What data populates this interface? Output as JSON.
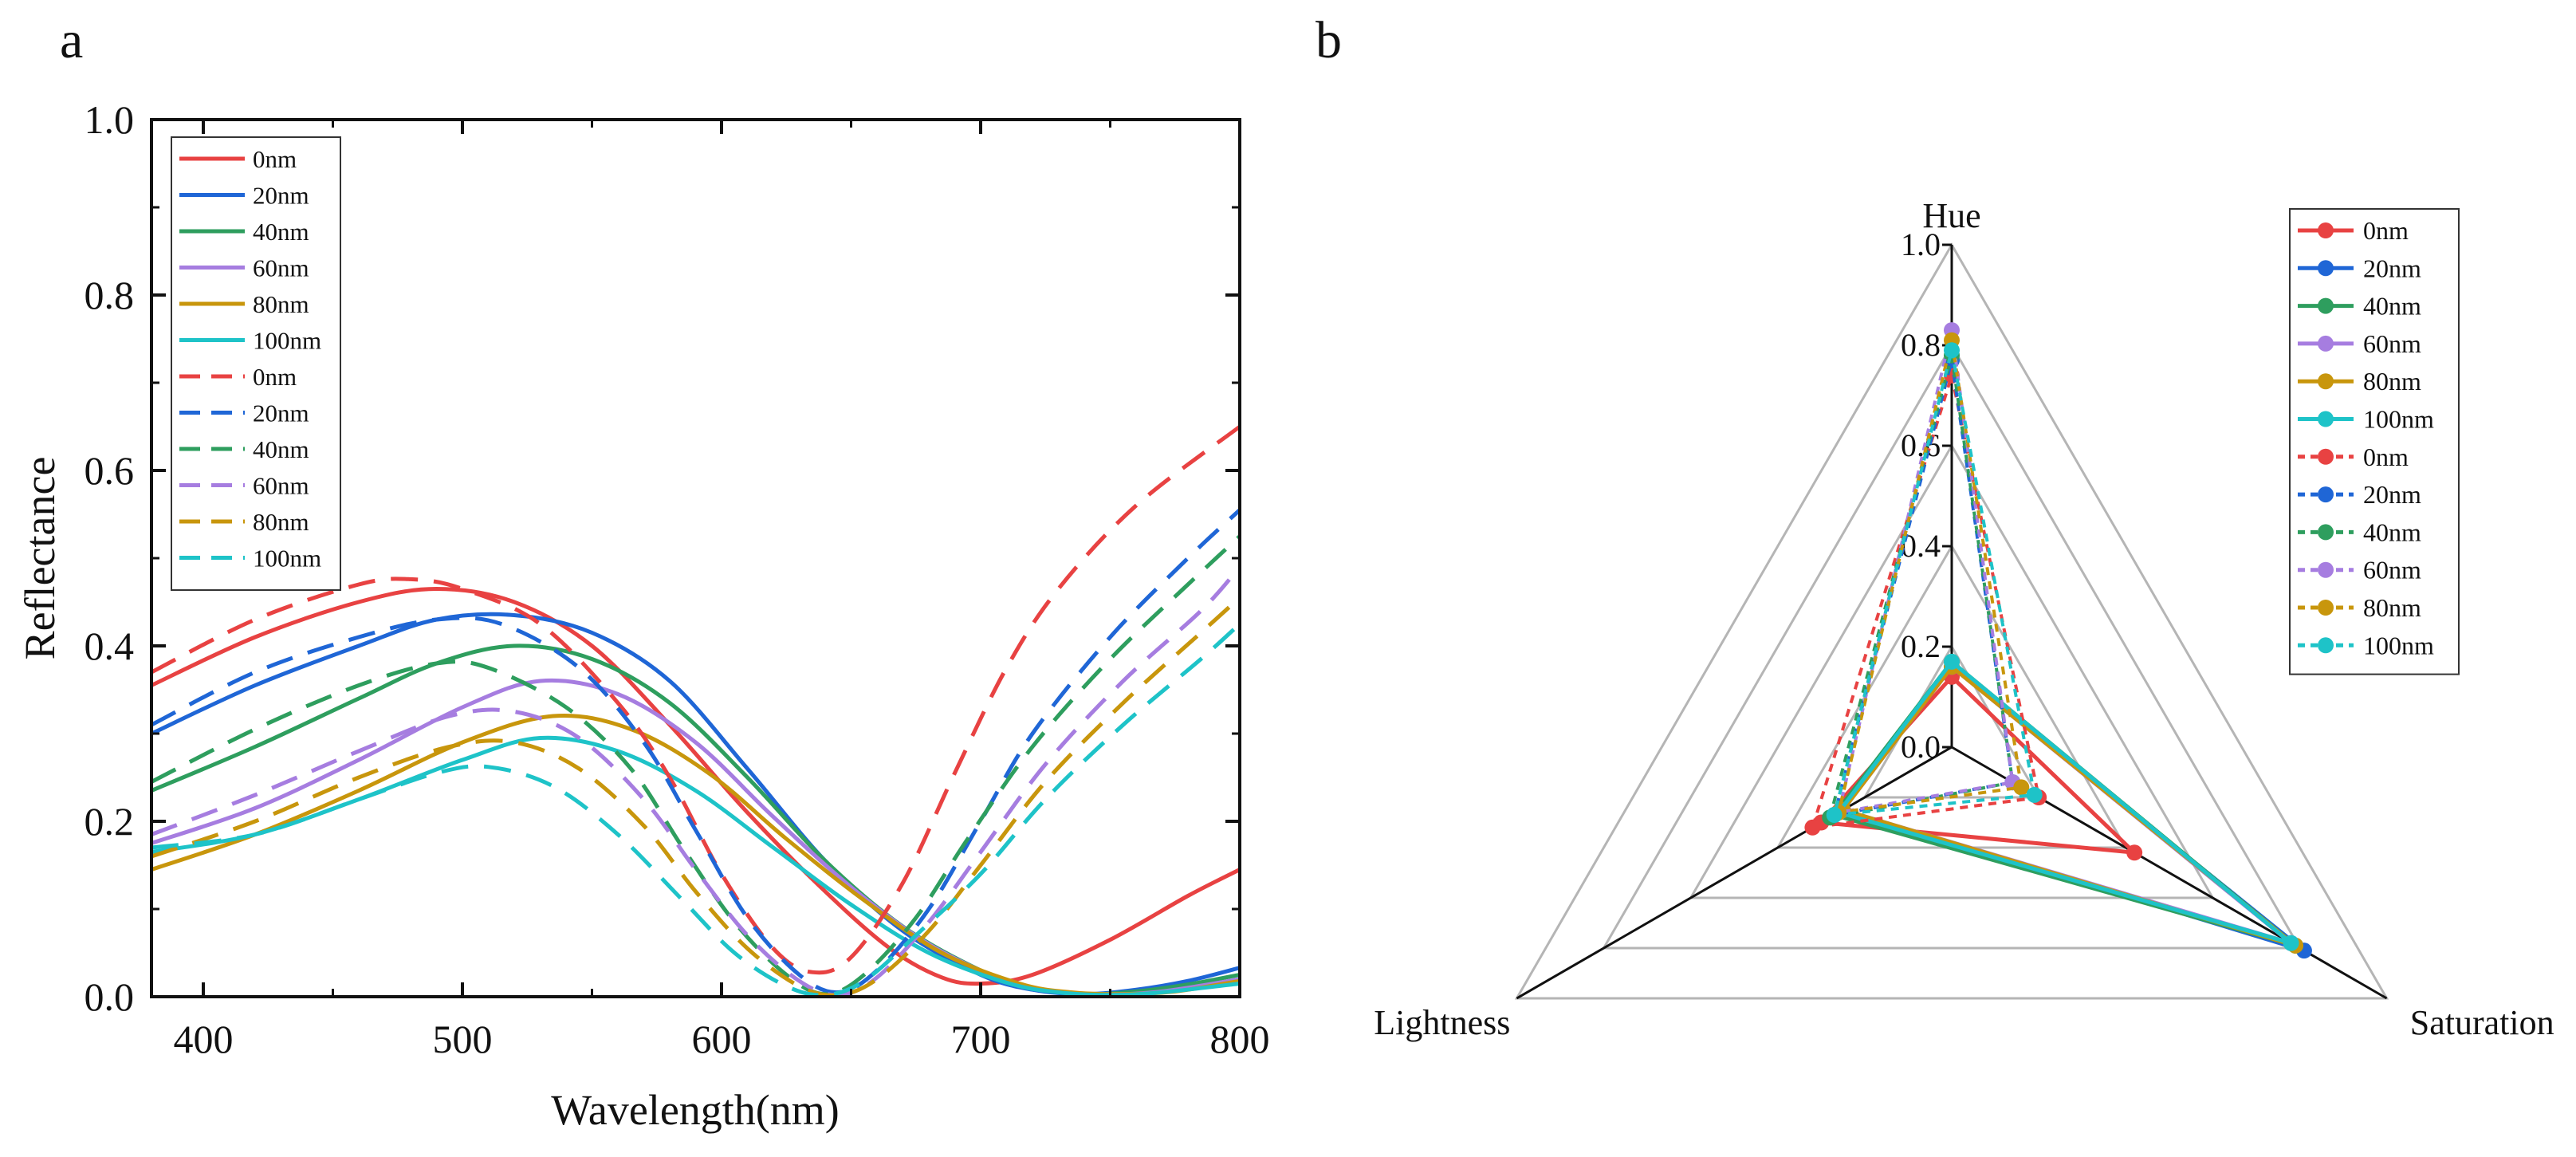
{
  "chart_data": [
    {
      "panel_label": "a",
      "type": "line",
      "xlabel": "Wavelength(nm)",
      "ylabel": "Reflectance",
      "xlim": [
        380,
        800
      ],
      "ylim": [
        0.0,
        1.0
      ],
      "xticks": [
        "400",
        "500",
        "600",
        "700",
        "800"
      ],
      "yticks": [
        "0.0",
        "0.2",
        "0.4",
        "0.6",
        "0.8",
        "1.0"
      ],
      "legend_position": "top-left",
      "series": [
        {
          "name": "0nm",
          "style": "solid",
          "color": "#e84242",
          "points": [
            [
              380,
              0.355
            ],
            [
              420,
              0.41
            ],
            [
              460,
              0.45
            ],
            [
              490,
              0.465
            ],
            [
              520,
              0.45
            ],
            [
              550,
              0.4
            ],
            [
              580,
              0.31
            ],
            [
              610,
              0.21
            ],
            [
              640,
              0.12
            ],
            [
              665,
              0.055
            ],
            [
              685,
              0.022
            ],
            [
              700,
              0.015
            ],
            [
              720,
              0.025
            ],
            [
              750,
              0.065
            ],
            [
              780,
              0.115
            ],
            [
              800,
              0.145
            ]
          ]
        },
        {
          "name": "20nm",
          "style": "solid",
          "color": "#1f66d6",
          "points": [
            [
              380,
              0.3
            ],
            [
              420,
              0.355
            ],
            [
              460,
              0.4
            ],
            [
              490,
              0.43
            ],
            [
              520,
              0.435
            ],
            [
              550,
              0.415
            ],
            [
              580,
              0.36
            ],
            [
              610,
              0.26
            ],
            [
              640,
              0.155
            ],
            [
              670,
              0.075
            ],
            [
              700,
              0.025
            ],
            [
              720,
              0.008
            ],
            [
              740,
              0.003
            ],
            [
              760,
              0.008
            ],
            [
              780,
              0.018
            ],
            [
              800,
              0.033
            ]
          ]
        },
        {
          "name": "40nm",
          "style": "solid",
          "color": "#2e9e5e",
          "points": [
            [
              380,
              0.235
            ],
            [
              420,
              0.285
            ],
            [
              460,
              0.34
            ],
            [
              490,
              0.38
            ],
            [
              520,
              0.4
            ],
            [
              550,
              0.385
            ],
            [
              580,
              0.335
            ],
            [
              610,
              0.25
            ],
            [
              640,
              0.155
            ],
            [
              670,
              0.08
            ],
            [
              700,
              0.03
            ],
            [
              720,
              0.01
            ],
            [
              740,
              0.003
            ],
            [
              760,
              0.006
            ],
            [
              780,
              0.014
            ],
            [
              800,
              0.025
            ]
          ]
        },
        {
          "name": "60nm",
          "style": "solid",
          "color": "#a67de0",
          "points": [
            [
              380,
              0.175
            ],
            [
              420,
              0.215
            ],
            [
              460,
              0.27
            ],
            [
              500,
              0.33
            ],
            [
              530,
              0.36
            ],
            [
              560,
              0.345
            ],
            [
              590,
              0.29
            ],
            [
              620,
              0.205
            ],
            [
              650,
              0.125
            ],
            [
              680,
              0.06
            ],
            [
              710,
              0.018
            ],
            [
              730,
              0.006
            ],
            [
              750,
              0.003
            ],
            [
              770,
              0.006
            ],
            [
              800,
              0.02
            ]
          ]
        },
        {
          "name": "80nm",
          "style": "solid",
          "color": "#c8960c",
          "points": [
            [
              380,
              0.145
            ],
            [
              420,
              0.185
            ],
            [
              460,
              0.235
            ],
            [
              500,
              0.29
            ],
            [
              535,
              0.32
            ],
            [
              565,
              0.305
            ],
            [
              595,
              0.255
            ],
            [
              625,
              0.18
            ],
            [
              655,
              0.11
            ],
            [
              685,
              0.05
            ],
            [
              715,
              0.015
            ],
            [
              735,
              0.005
            ],
            [
              755,
              0.003
            ],
            [
              775,
              0.006
            ],
            [
              800,
              0.018
            ]
          ]
        },
        {
          "name": "100nm",
          "style": "solid",
          "color": "#1ec3c8",
          "points": [
            [
              380,
              0.165
            ],
            [
              420,
              0.185
            ],
            [
              460,
              0.225
            ],
            [
              500,
              0.27
            ],
            [
              530,
              0.295
            ],
            [
              560,
              0.28
            ],
            [
              590,
              0.235
            ],
            [
              620,
              0.17
            ],
            [
              650,
              0.105
            ],
            [
              680,
              0.05
            ],
            [
              710,
              0.016
            ],
            [
              730,
              0.005
            ],
            [
              750,
              0.002
            ],
            [
              770,
              0.005
            ],
            [
              800,
              0.015
            ]
          ]
        },
        {
          "name": "0nm",
          "style": "dashed",
          "color": "#e84242",
          "points": [
            [
              380,
              0.37
            ],
            [
              420,
              0.43
            ],
            [
              460,
              0.47
            ],
            [
              480,
              0.476
            ],
            [
              500,
              0.465
            ],
            [
              530,
              0.425
            ],
            [
              560,
              0.335
            ],
            [
              580,
              0.25
            ],
            [
              600,
              0.14
            ],
            [
              620,
              0.055
            ],
            [
              635,
              0.028
            ],
            [
              650,
              0.045
            ],
            [
              670,
              0.13
            ],
            [
              690,
              0.255
            ],
            [
              710,
              0.375
            ],
            [
              730,
              0.465
            ],
            [
              760,
              0.56
            ],
            [
              800,
              0.65
            ]
          ]
        },
        {
          "name": "20nm",
          "style": "dashed",
          "color": "#1f66d6",
          "points": [
            [
              380,
              0.31
            ],
            [
              420,
              0.37
            ],
            [
              460,
              0.41
            ],
            [
              490,
              0.43
            ],
            [
              515,
              0.425
            ],
            [
              545,
              0.375
            ],
            [
              570,
              0.29
            ],
            [
              590,
              0.19
            ],
            [
              610,
              0.09
            ],
            [
              630,
              0.025
            ],
            [
              645,
              0.005
            ],
            [
              660,
              0.03
            ],
            [
              680,
              0.1
            ],
            [
              700,
              0.2
            ],
            [
              720,
              0.3
            ],
            [
              750,
              0.41
            ],
            [
              780,
              0.5
            ],
            [
              800,
              0.555
            ]
          ]
        },
        {
          "name": "40nm",
          "style": "dashed",
          "color": "#2e9e5e",
          "points": [
            [
              380,
              0.245
            ],
            [
              420,
              0.305
            ],
            [
              460,
              0.355
            ],
            [
              490,
              0.38
            ],
            [
              510,
              0.375
            ],
            [
              540,
              0.33
            ],
            [
              565,
              0.26
            ],
            [
              585,
              0.17
            ],
            [
              605,
              0.085
            ],
            [
              625,
              0.025
            ],
            [
              640,
              0.003
            ],
            [
              655,
              0.025
            ],
            [
              675,
              0.09
            ],
            [
              695,
              0.18
            ],
            [
              720,
              0.285
            ],
            [
              750,
              0.385
            ],
            [
              780,
              0.47
            ],
            [
              800,
              0.525
            ]
          ]
        },
        {
          "name": "60nm",
          "style": "dashed",
          "color": "#a67de0",
          "points": [
            [
              380,
              0.185
            ],
            [
              420,
              0.23
            ],
            [
              460,
              0.28
            ],
            [
              495,
              0.32
            ],
            [
              520,
              0.325
            ],
            [
              545,
              0.295
            ],
            [
              570,
              0.225
            ],
            [
              590,
              0.145
            ],
            [
              610,
              0.07
            ],
            [
              630,
              0.018
            ],
            [
              645,
              0.002
            ],
            [
              660,
              0.022
            ],
            [
              680,
              0.085
            ],
            [
              700,
              0.165
            ],
            [
              725,
              0.265
            ],
            [
              755,
              0.36
            ],
            [
              785,
              0.44
            ],
            [
              800,
              0.49
            ]
          ]
        },
        {
          "name": "80nm",
          "style": "dashed",
          "color": "#c8960c",
          "points": [
            [
              380,
              0.16
            ],
            [
              420,
              0.2
            ],
            [
              460,
              0.25
            ],
            [
              495,
              0.285
            ],
            [
              520,
              0.29
            ],
            [
              545,
              0.26
            ],
            [
              570,
              0.195
            ],
            [
              590,
              0.12
            ],
            [
              610,
              0.055
            ],
            [
              630,
              0.012
            ],
            [
              645,
              0.002
            ],
            [
              660,
              0.02
            ],
            [
              680,
              0.075
            ],
            [
              700,
              0.15
            ],
            [
              725,
              0.245
            ],
            [
              755,
              0.335
            ],
            [
              785,
              0.415
            ],
            [
              800,
              0.455
            ]
          ]
        },
        {
          "name": "100nm",
          "style": "dashed",
          "color": "#1ec3c8",
          "points": [
            [
              380,
              0.17
            ],
            [
              420,
              0.185
            ],
            [
              460,
              0.225
            ],
            [
              490,
              0.255
            ],
            [
              510,
              0.262
            ],
            [
              535,
              0.24
            ],
            [
              560,
              0.185
            ],
            [
              585,
              0.11
            ],
            [
              605,
              0.05
            ],
            [
              625,
              0.012
            ],
            [
              640,
              0.002
            ],
            [
              655,
              0.018
            ],
            [
              675,
              0.07
            ],
            [
              700,
              0.14
            ],
            [
              725,
              0.225
            ],
            [
              755,
              0.31
            ],
            [
              785,
              0.385
            ],
            [
              800,
              0.425
            ]
          ]
        }
      ]
    },
    {
      "panel_label": "b",
      "type": "radar",
      "axes": [
        "Hue",
        "Saturation",
        "Lightness"
      ],
      "rlim": [
        0.0,
        1.0
      ],
      "rticks": [
        "0.0",
        "0.2",
        "0.4",
        "0.6",
        "0.8",
        "1.0"
      ],
      "legend_position": "top-right",
      "series": [
        {
          "name": "0nm",
          "style": "solid",
          "color": "#e84242",
          "values": [
            0.14,
            0.42,
            0.3
          ]
        },
        {
          "name": "20nm",
          "style": "solid",
          "color": "#1f66d6",
          "values": [
            0.16,
            0.81,
            0.25
          ]
        },
        {
          "name": "40nm",
          "style": "solid",
          "color": "#2e9e5e",
          "values": [
            0.17,
            0.79,
            0.27
          ]
        },
        {
          "name": "60nm",
          "style": "solid",
          "color": "#a67de0",
          "values": [
            0.16,
            0.78,
            0.25
          ]
        },
        {
          "name": "80nm",
          "style": "solid",
          "color": "#c8960c",
          "values": [
            0.16,
            0.79,
            0.25
          ]
        },
        {
          "name": "100nm",
          "style": "solid",
          "color": "#1ec3c8",
          "values": [
            0.17,
            0.78,
            0.26
          ]
        },
        {
          "name": "0nm",
          "style": "dotted",
          "color": "#e84242",
          "values": [
            0.74,
            0.2,
            0.32
          ]
        },
        {
          "name": "20nm",
          "style": "dotted",
          "color": "#1f66d6",
          "values": [
            0.77,
            0.14,
            0.27
          ]
        },
        {
          "name": "40nm",
          "style": "dotted",
          "color": "#2e9e5e",
          "values": [
            0.78,
            0.14,
            0.28
          ]
        },
        {
          "name": "60nm",
          "style": "dotted",
          "color": "#a67de0",
          "values": [
            0.83,
            0.14,
            0.26
          ]
        },
        {
          "name": "80nm",
          "style": "dotted",
          "color": "#c8960c",
          "values": [
            0.81,
            0.16,
            0.26
          ]
        },
        {
          "name": "100nm",
          "style": "dotted",
          "color": "#1ec3c8",
          "values": [
            0.79,
            0.19,
            0.27
          ]
        }
      ]
    }
  ]
}
